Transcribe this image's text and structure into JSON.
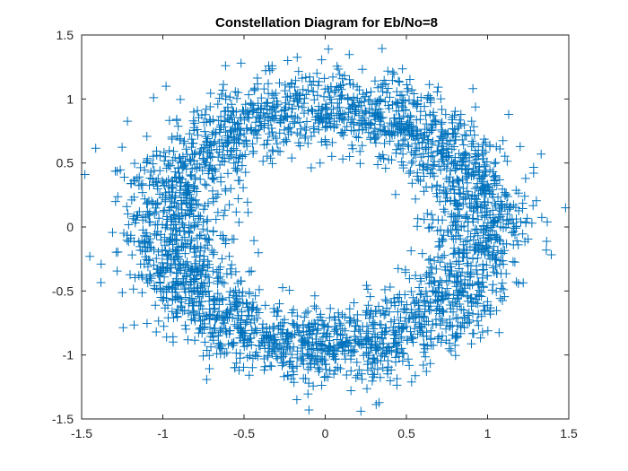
{
  "chart_data": {
    "type": "scatter",
    "title": "Constellation Diagram for Eb/No=8",
    "xlabel": "",
    "ylabel": "",
    "xlim": [
      -1.5,
      1.5
    ],
    "ylim": [
      -1.5,
      1.5
    ],
    "xticks": [
      -1.5,
      -1,
      -0.5,
      0,
      0.5,
      1,
      1.5
    ],
    "yticks": [
      -1.5,
      -1,
      -0.5,
      0,
      0.5,
      1,
      1.5
    ],
    "xtick_labels": [
      "-1.5",
      "-1",
      "-0.5",
      "0",
      "0.5",
      "1",
      "1.5"
    ],
    "ytick_labels": [
      "-1.5",
      "-1",
      "-0.5",
      "0",
      "0.5",
      "1",
      "1.5"
    ],
    "grid": false,
    "marker": "plus",
    "marker_color": "#0072BD",
    "series": [
      {
        "ring_points": {
          "count": 3000,
          "center": [
            0,
            0
          ],
          "semi_axis_x": 0.98,
          "semi_axis_y": 0.95,
          "spread_std": 0.16
        },
        "outliers": [
          [
            -1.48,
            0.41
          ],
          [
            -1.45,
            -0.23
          ],
          [
            -1.38,
            -0.29
          ],
          [
            1.48,
            0.15
          ],
          [
            1.33,
            0.57
          ],
          [
            0.22,
            -1.44
          ],
          [
            -0.1,
            -1.43
          ],
          [
            1.13,
            0.88
          ],
          [
            -0.98,
            1.1
          ],
          [
            0.02,
            1.39
          ],
          [
            0.15,
            0.55
          ],
          [
            -0.55,
            -0.35
          ]
        ]
      }
    ]
  }
}
